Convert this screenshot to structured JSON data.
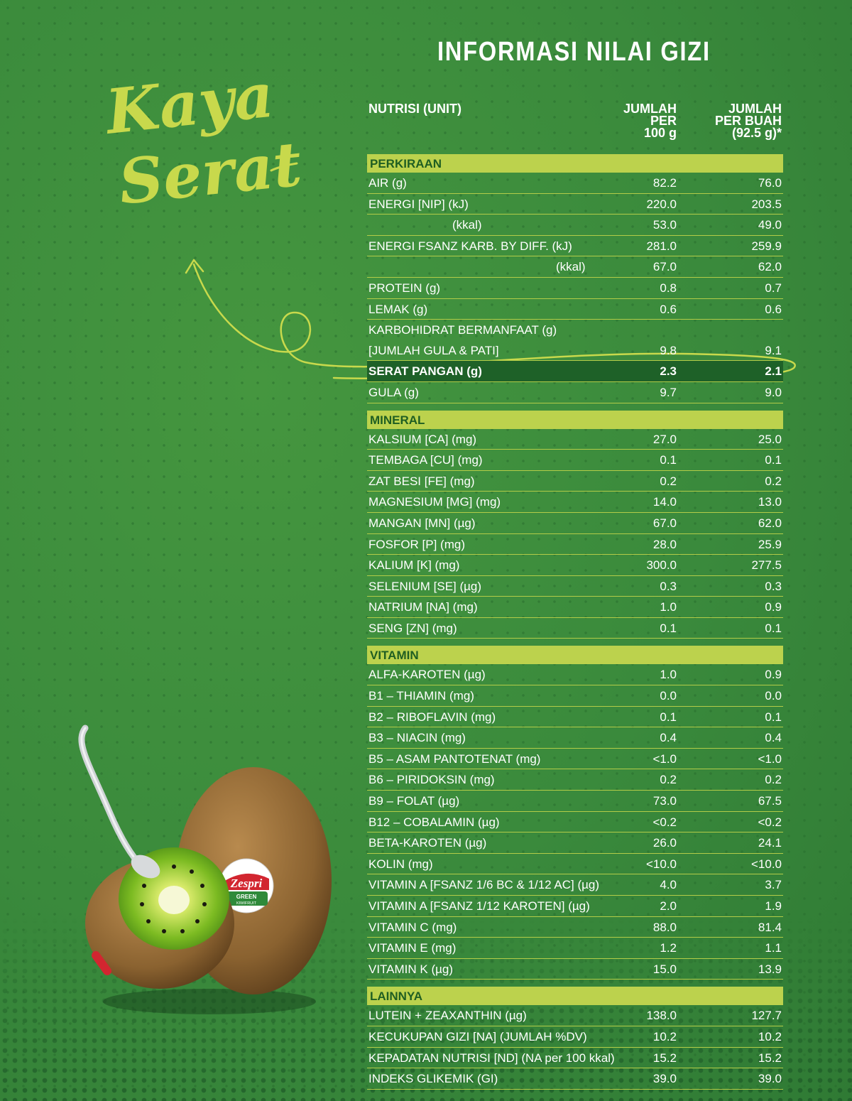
{
  "title": "INFORMASI NILAI GIZI",
  "tagline": {
    "line1": "Kaya",
    "line2": "Serat"
  },
  "logo": {
    "brand": "Zespri",
    "sub1": "GREEN",
    "sub2": "KIWIFRUIT"
  },
  "columns": {
    "nutrient": "NUTRISI (UNIT)",
    "per100_l1": "JUMLAH",
    "per100_l2": "PER",
    "per100_l3": "100 g",
    "perfruit_l1": "JUMLAH",
    "perfruit_l2": "PER BUAH",
    "perfruit_l3": "(92.5 g)*"
  },
  "sections": {
    "perkiraan": {
      "label": "PERKIRAAN",
      "rows": [
        {
          "name": "AIR (g)",
          "per100": "82.2",
          "perfruit": "76.0"
        },
        {
          "name": "ENERGI [NIP] (kJ)",
          "per100": "220.0",
          "perfruit": "203.5"
        },
        {
          "name": "(kkal)",
          "per100": "53.0",
          "perfruit": "49.0"
        },
        {
          "name": "ENERGI FSANZ KARB. BY DIFF. (kJ)",
          "per100": "281.0",
          "perfruit": "259.9"
        },
        {
          "name": "(kkal)",
          "per100": "67.0",
          "perfruit": "62.0"
        },
        {
          "name": "PROTEIN (g)",
          "per100": "0.8",
          "perfruit": "0.7"
        },
        {
          "name": "LEMAK (g)",
          "per100": "0.6",
          "perfruit": "0.6"
        },
        {
          "name": "KARBOHIDRAT BERMANFAAT (g)",
          "per100": "",
          "perfruit": ""
        },
        {
          "name": "[JUMLAH GULA & PATI]",
          "per100": "9.8",
          "perfruit": "9.1"
        },
        {
          "name": "SERAT PANGAN (g)",
          "per100": "2.3",
          "perfruit": "2.1"
        },
        {
          "name": "GULA (g)",
          "per100": "9.7",
          "perfruit": "9.0"
        }
      ]
    },
    "mineral": {
      "label": "MINERAL",
      "rows": [
        {
          "name": "KALSIUM [CA] (mg)",
          "per100": "27.0",
          "perfruit": "25.0"
        },
        {
          "name": "TEMBAGA [CU] (mg)",
          "per100": "0.1",
          "perfruit": "0.1"
        },
        {
          "name": "ZAT BESI [FE] (mg)",
          "per100": "0.2",
          "perfruit": "0.2"
        },
        {
          "name": "MAGNESIUM [MG] (mg)",
          "per100": "14.0",
          "perfruit": "13.0"
        },
        {
          "name": "MANGAN [MN] (µg)",
          "per100": "67.0",
          "perfruit": "62.0"
        },
        {
          "name": "FOSFOR [P] (mg)",
          "per100": "28.0",
          "perfruit": "25.9"
        },
        {
          "name": "KALIUM [K] (mg)",
          "per100": "300.0",
          "perfruit": "277.5"
        },
        {
          "name": "SELENIUM [SE] (µg)",
          "per100": "0.3",
          "perfruit": "0.3"
        },
        {
          "name": "NATRIUM [NA] (mg)",
          "per100": "1.0",
          "perfruit": "0.9"
        },
        {
          "name": "SENG [ZN] (mg)",
          "per100": "0.1",
          "perfruit": "0.1"
        }
      ]
    },
    "vitamin": {
      "label": "VITAMIN",
      "rows": [
        {
          "name": "ALFA-KAROTEN (µg)",
          "per100": "1.0",
          "perfruit": "0.9"
        },
        {
          "name": "B1 – THIAMIN (mg)",
          "per100": "0.0",
          "perfruit": "0.0"
        },
        {
          "name": "B2 – RIBOFLAVIN (mg)",
          "per100": "0.1",
          "perfruit": "0.1"
        },
        {
          "name": "B3 – NIACIN (mg)",
          "per100": "0.4",
          "perfruit": "0.4"
        },
        {
          "name": "B5 – ASAM PANTOTENAT (mg)",
          "per100": "<1.0",
          "perfruit": "<1.0"
        },
        {
          "name": "B6 – PIRIDOKSIN (mg)",
          "per100": "0.2",
          "perfruit": "0.2"
        },
        {
          "name": "B9 – FOLAT (µg)",
          "per100": "73.0",
          "perfruit": "67.5"
        },
        {
          "name": "B12 – COBALAMIN (µg)",
          "per100": "<0.2",
          "perfruit": "<0.2"
        },
        {
          "name": "BETA-KAROTEN (µg)",
          "per100": "26.0",
          "perfruit": "24.1"
        },
        {
          "name": "KOLIN (mg)",
          "per100": "<10.0",
          "perfruit": "<10.0"
        },
        {
          "name": "VITAMIN A [FSANZ 1/6 BC & 1/12 AC] (µg)",
          "per100": "4.0",
          "perfruit": "3.7"
        },
        {
          "name": "VITAMIN A [FSANZ 1/12 KAROTEN] (µg)",
          "per100": "2.0",
          "perfruit": "1.9"
        },
        {
          "name": "VITAMIN C (mg)",
          "per100": "88.0",
          "perfruit": "81.4"
        },
        {
          "name": "VITAMIN E (mg)",
          "per100": "1.2",
          "perfruit": "1.1"
        },
        {
          "name": "VITAMIN K (µg)",
          "per100": "15.0",
          "perfruit": "13.9"
        }
      ]
    },
    "lainnya": {
      "label": "LAINNYA",
      "rows": [
        {
          "name": "LUTEIN + ZEAXANTHIN (µg)",
          "per100": "138.0",
          "perfruit": "127.7"
        },
        {
          "name": "KECUKUPAN GIZI [NA] (JUMLAH %DV)",
          "per100": "10.2",
          "perfruit": "10.2"
        },
        {
          "name": "KEPADATAN NUTRISI [ND] (NA per 100 kkal)",
          "per100": "15.2",
          "perfruit": "15.2"
        },
        {
          "name": "INDEKS GLIKEMIK (GI)",
          "per100": "39.0",
          "perfruit": "39.0"
        }
      ]
    }
  },
  "colors": {
    "background": "#3a8a3c",
    "accent": "#bcd24d",
    "highlight": "#1e6128",
    "script": "#c8d94c"
  }
}
